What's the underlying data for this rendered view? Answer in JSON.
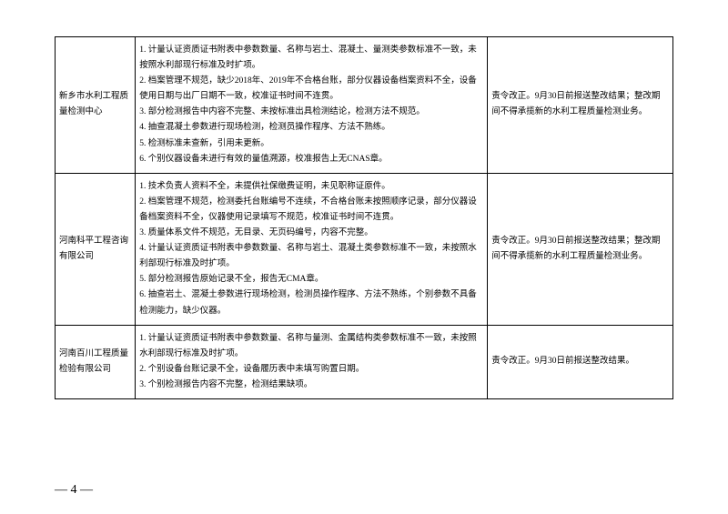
{
  "table": {
    "rows": [
      {
        "org": "新乡市水利工程质量检测中心",
        "issues": [
          "1. 计量认证资质证书附表中参数数量、名称与岩土、混凝土、量测类参数标准不一致，未按照水利部现行标准及时扩项。",
          "2. 档案管理不规范，缺少2018年、2019年不合格台账，部分仪器设备档案资料不全，设备使用日期与出厂日期不一致，校准证书时间不连贯。",
          "3. 部分检测报告中内容不完整、未按标准出具检测结论，检测方法不规范。",
          "4. 抽查混凝土参数进行现场检测，检测员操作程序、方法不熟练。",
          "5. 检测标准未查新，引用未更新。",
          "6. 个别仪器设备未进行有效的量值溯源，校准报告上无CNAS章。"
        ],
        "action": "责令改正。9月30日前报送整改结果；整改期间不得承揽新的水利工程质量检测业务。"
      },
      {
        "org": "河南科平工程咨询有限公司",
        "issues": [
          "1. 技术负责人资料不全，未提供社保缴费证明，未见职称证原件。",
          "2. 档案管理不规范，检测委托台账编号不连续，不合格台账未按照顺序记录，部分仪器设备档案资料不全，仪器使用记录填写不规范，校准证书时间不连贯。",
          "3. 质量体系文件不规范，无目录、无页码编号，内容不完整。",
          "4. 计量认证资质证书附表中参数数量、名称与岩土、混凝土类参数标准不一致，未按照水利部现行标准及时扩项。",
          "5. 部分检测报告原始记录不全，报告无CMA章。",
          "6. 抽查岩土、混凝土参数进行现场检测，检测员操作程序、方法不熟练，个别参数不具备检测能力，缺少仪器。"
        ],
        "action": "责令改正。9月30日前报送整改结果；整改期间不得承揽新的水利工程质量检测业务。"
      },
      {
        "org": "河南百川工程质量检验有限公司",
        "issues": [
          "1. 计量认证资质证书附表中参数数量、名称与量测、金属结构类参数标准不一致，未按照水利部现行标准及时扩项。",
          "2. 个别设备台账记录不全，设备履历表中未填写购置日期。",
          "3. 个别检测报告内容不完整，检测结果缺项。"
        ],
        "action": "责令改正。9月30日前报送整改结果。"
      }
    ]
  },
  "page_number": "— 4 —"
}
